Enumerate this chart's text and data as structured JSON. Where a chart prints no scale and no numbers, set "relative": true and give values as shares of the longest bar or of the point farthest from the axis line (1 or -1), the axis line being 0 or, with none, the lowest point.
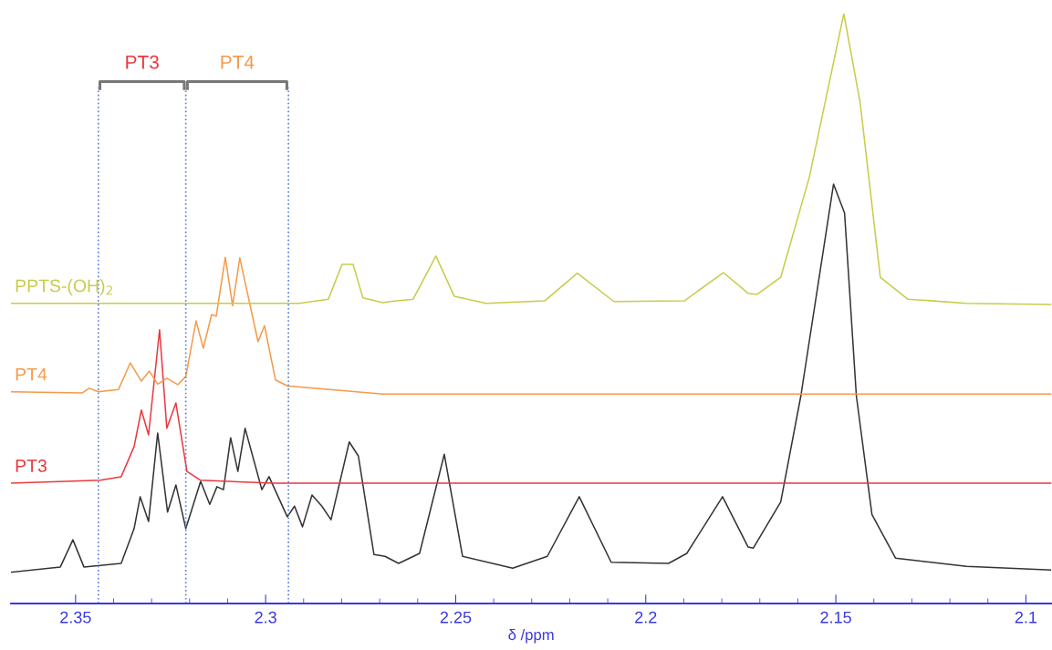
{
  "chart_data": {
    "type": "line",
    "relative": true,
    "xlabel": "δ /ppm",
    "xlim": [
      2.367,
      2.0933
    ],
    "xticks": [
      2.35,
      {
        "value": 2.34,
        "label": null
      },
      {
        "value": 2.33,
        "label": null
      },
      {
        "value": 2.32,
        "label": null
      },
      {
        "value": 2.31,
        "label": null
      },
      2.3,
      {
        "value": 2.29,
        "label": null
      },
      {
        "value": 2.28,
        "label": null
      },
      {
        "value": 2.27,
        "label": null
      },
      {
        "value": 2.26,
        "label": null
      },
      2.25,
      {
        "value": 2.24,
        "label": null
      },
      {
        "value": 2.23,
        "label": null
      },
      {
        "value": 2.22,
        "label": null
      },
      {
        "value": 2.21,
        "label": null
      },
      2.2,
      {
        "value": 2.19,
        "label": null
      },
      {
        "value": 2.18,
        "label": null
      },
      {
        "value": 2.17,
        "label": null
      },
      {
        "value": 2.16,
        "label": null
      },
      2.15,
      {
        "value": 2.14,
        "label": null
      },
      {
        "value": 2.13,
        "label": null
      },
      {
        "value": 2.12,
        "label": null
      },
      {
        "value": 2.11,
        "label": null
      },
      2.1
    ],
    "grid": false,
    "legend": false,
    "marker": "none",
    "line_style": "solid",
    "series": [
      {
        "color": "#333333",
        "x": [
          2.367,
          2.354,
          2.3507,
          2.3478,
          2.338,
          2.3346,
          2.333,
          2.3308,
          2.3284,
          2.3258,
          2.3236,
          2.321,
          2.3171,
          2.3147,
          2.3128,
          2.3111,
          2.3092,
          2.3073,
          2.3054,
          2.301,
          2.2991,
          2.2943,
          2.2924,
          2.2903,
          2.2878,
          2.2852,
          2.2828,
          2.278,
          2.2756,
          2.2715,
          2.2686,
          2.265,
          2.2595,
          2.253,
          2.2482,
          2.235,
          2.2259,
          2.2175,
          2.2091,
          2.194,
          2.1892,
          2.1798,
          2.1731,
          2.1717,
          2.1645,
          2.1592,
          2.1506,
          2.1477,
          2.1446,
          2.1405,
          2.1343,
          2.1156,
          2.0935
        ],
        "values": [
          0.053,
          0.062,
          0.108,
          0.062,
          0.068,
          0.127,
          0.181,
          0.139,
          0.289,
          0.155,
          0.201,
          0.127,
          0.207,
          0.168,
          0.198,
          0.193,
          0.281,
          0.224,
          0.297,
          0.193,
          0.215,
          0.147,
          0.165,
          0.13,
          0.184,
          0.165,
          0.142,
          0.274,
          0.25,
          0.083,
          0.08,
          0.068,
          0.085,
          0.253,
          0.08,
          0.06,
          0.08,
          0.181,
          0.07,
          0.068,
          0.085,
          0.181,
          0.096,
          0.094,
          0.172,
          0.352,
          0.711,
          0.662,
          0.352,
          0.151,
          0.077,
          0.063,
          0.057
        ]
      },
      {
        "name": "PT3",
        "color": "#e8383d",
        "x": [
          2.367,
          2.3435,
          2.338,
          2.3346,
          2.3327,
          2.3308,
          2.3279,
          2.326,
          2.3236,
          2.3207,
          2.3171,
          2.2979,
          2.0933
        ],
        "values": [
          0.204,
          0.209,
          0.215,
          0.266,
          0.328,
          0.286,
          0.464,
          0.297,
          0.34,
          0.224,
          0.209,
          0.204,
          0.204
        ]
      },
      {
        "name": "PT4",
        "color": "#f59a4a",
        "x": [
          2.367,
          2.3483,
          2.3464,
          2.344,
          2.3387,
          2.3356,
          2.3327,
          2.3306,
          2.3284,
          2.326,
          2.3231,
          2.321,
          2.3183,
          2.3164,
          2.3142,
          2.313,
          2.3106,
          2.3087,
          2.3068,
          2.302,
          2.3003,
          2.2974,
          2.2943,
          2.289,
          2.2818,
          2.2691,
          2.0933
        ],
        "values": [
          0.359,
          0.357,
          0.365,
          0.359,
          0.363,
          0.408,
          0.377,
          0.394,
          0.372,
          0.382,
          0.371,
          0.385,
          0.479,
          0.433,
          0.49,
          0.487,
          0.587,
          0.505,
          0.586,
          0.444,
          0.471,
          0.379,
          0.369,
          0.366,
          0.362,
          0.355,
          0.355
        ]
      },
      {
        "name": "PPTS-(OH)$_{2}$",
        "color": "#c8cc4a",
        "x": [
          2.367,
          2.2912,
          2.2835,
          2.2799,
          2.277,
          2.2744,
          2.2691,
          2.2674,
          2.2612,
          2.2552,
          2.2504,
          2.242,
          2.2266,
          2.218,
          2.2084,
          2.1899,
          2.1796,
          2.1731,
          2.1707,
          2.1645,
          2.157,
          2.1479,
          2.1436,
          2.1383,
          2.1311,
          2.1156,
          2.0933
        ],
        "values": [
          0.509,
          0.509,
          0.516,
          0.575,
          0.575,
          0.518,
          0.51,
          0.512,
          0.516,
          0.589,
          0.521,
          0.509,
          0.513,
          0.56,
          0.512,
          0.513,
          0.561,
          0.526,
          0.524,
          0.553,
          0.722,
          1.0,
          0.849,
          0.553,
          0.516,
          0.509,
          0.507
        ]
      }
    ],
    "ref_lines": [
      {
        "axis": "x",
        "value": 2.344,
        "color": "#5b7fd6",
        "line_style": "dotted"
      },
      {
        "axis": "x",
        "value": 2.321,
        "color": "#5b7fd6",
        "line_style": "dotted"
      },
      {
        "axis": "x",
        "value": 2.294,
        "color": "#5b7fd6",
        "line_style": "dotted"
      }
    ],
    "annotations": [
      "PT3",
      "PT4"
    ]
  }
}
